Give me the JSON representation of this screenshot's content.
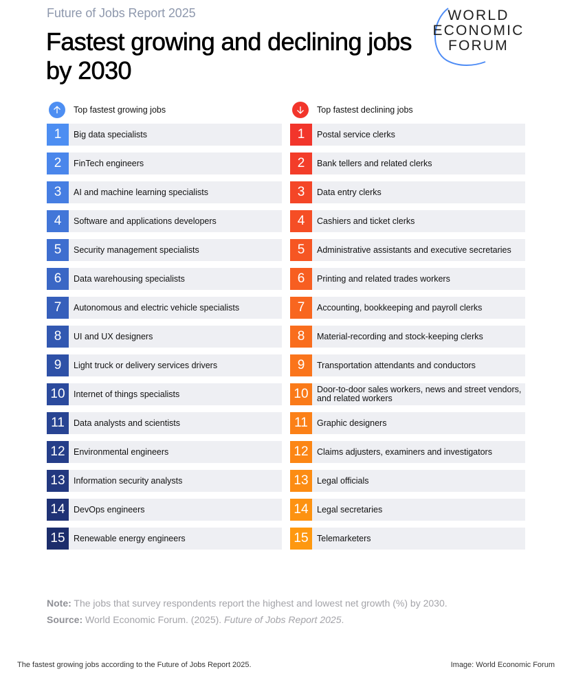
{
  "header": {
    "kicker": "Future of Jobs Report 2025",
    "title": "Fastest growing and declining jobs by 2030"
  },
  "logo": {
    "line1": "WORLD",
    "line2": "ECONOMIC",
    "line3": "FORUM",
    "arc_color": "#4e8cf5"
  },
  "growing": {
    "heading": "Top fastest growing jobs",
    "icon": "arrow-up-icon",
    "icon_color": "#4d8ef2",
    "items": [
      {
        "rank": "1",
        "label": "Big data specialists",
        "color": "#4d8ef2"
      },
      {
        "rank": "2",
        "label": "FinTech engineers",
        "color": "#4a86eb"
      },
      {
        "rank": "3",
        "label": "AI and machine learning specialists",
        "color": "#467ee2"
      },
      {
        "rank": "4",
        "label": "Software and applications developers",
        "color": "#4276d8"
      },
      {
        "rank": "5",
        "label": "Security management specialists",
        "color": "#3e6ecf"
      },
      {
        "rank": "6",
        "label": "Data warehousing specialists",
        "color": "#3a67c5"
      },
      {
        "rank": "7",
        "label": "Autonomous and electric vehicle specialists",
        "color": "#365fbb"
      },
      {
        "rank": "8",
        "label": "UI and UX designers",
        "color": "#3258b1"
      },
      {
        "rank": "9",
        "label": "Light truck or delivery services drivers",
        "color": "#2e51a7"
      },
      {
        "rank": "10",
        "label": "Internet of things specialists",
        "color": "#2b4a9d"
      },
      {
        "rank": "11",
        "label": "Data analysts and scientists",
        "color": "#284493"
      },
      {
        "rank": "12",
        "label": "Environmental engineers",
        "color": "#253e89"
      },
      {
        "rank": "13",
        "label": "Information security analysts",
        "color": "#22387f"
      },
      {
        "rank": "14",
        "label": "DevOps engineers",
        "color": "#1f3275"
      },
      {
        "rank": "15",
        "label": "Renewable energy engineers",
        "color": "#1c2d6b"
      }
    ]
  },
  "declining": {
    "heading": "Top fastest declining jobs",
    "icon": "arrow-down-icon",
    "icon_color": "#f2352b",
    "items": [
      {
        "rank": "1",
        "label": "Postal service clerks",
        "color": "#f2352b"
      },
      {
        "rank": "2",
        "label": "Bank tellers and related clerks",
        "color": "#f33d29"
      },
      {
        "rank": "3",
        "label": "Data entry clerks",
        "color": "#f44627"
      },
      {
        "rank": "4",
        "label": "Cashiers and ticket clerks",
        "color": "#f54e25"
      },
      {
        "rank": "5",
        "label": "Administrative assistants and executive secretaries",
        "color": "#f65623"
      },
      {
        "rank": "6",
        "label": "Printing and related trades workers",
        "color": "#f75e21"
      },
      {
        "rank": "7",
        "label": "Accounting, bookkeeping and payroll clerks",
        "color": "#f8661f"
      },
      {
        "rank": "8",
        "label": "Material-recording and stock-keeping clerks",
        "color": "#f96d1d"
      },
      {
        "rank": "9",
        "label": "Transportation attendants and conductors",
        "color": "#fa741b"
      },
      {
        "rank": "10",
        "label": "Door-to-door sales workers, news and street vendors, and related workers",
        "color": "#fa7a19"
      },
      {
        "rank": "11",
        "label": "Graphic designers",
        "color": "#fb8017"
      },
      {
        "rank": "12",
        "label": "Claims adjusters, examiners and investigators",
        "color": "#fc8615"
      },
      {
        "rank": "13",
        "label": "Legal officials",
        "color": "#fc8c13"
      },
      {
        "rank": "14",
        "label": "Legal secretaries",
        "color": "#fd9211"
      },
      {
        "rank": "15",
        "label": "Telemarketers",
        "color": "#fe980f"
      }
    ]
  },
  "footer": {
    "note_label": "Note:",
    "note_text": " The jobs that survey respondents report the highest and lowest net growth (%) by 2030.",
    "source_label": "Source:",
    "source_text": " World Economic Forum. (2025). ",
    "source_italic": "Future of Jobs Report 2025",
    "source_end": "."
  },
  "caption": {
    "left": "The fastest growing jobs according to the Future of Jobs Report 2025.",
    "right": "Image: World Economic Forum"
  }
}
